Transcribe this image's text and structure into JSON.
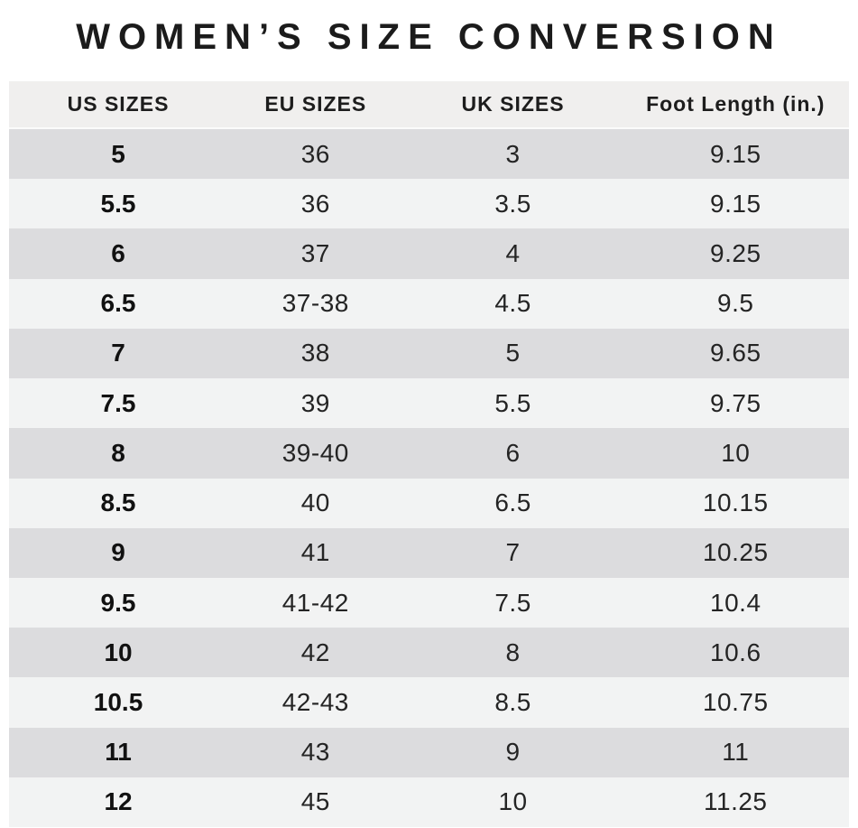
{
  "title": "WOMEN’S SIZE CONVERSION",
  "table": {
    "columns": [
      "US SIZES",
      "EU SIZES",
      "UK SIZES",
      "Foot Length (in.)"
    ],
    "rows": [
      [
        "5",
        "36",
        "3",
        "9.15"
      ],
      [
        "5.5",
        "36",
        "3.5",
        "9.15"
      ],
      [
        "6",
        "37",
        "4",
        "9.25"
      ],
      [
        "6.5",
        "37-38",
        "4.5",
        "9.5"
      ],
      [
        "7",
        "38",
        "5",
        "9.65"
      ],
      [
        "7.5",
        "39",
        "5.5",
        "9.75"
      ],
      [
        "8",
        "39-40",
        "6",
        "10"
      ],
      [
        "8.5",
        "40",
        "6.5",
        "10.15"
      ],
      [
        "9",
        "41",
        "7",
        "10.25"
      ],
      [
        "9.5",
        "41-42",
        "7.5",
        "10.4"
      ],
      [
        "10",
        "42",
        "8",
        "10.6"
      ],
      [
        "10.5",
        "42-43",
        "8.5",
        "10.75"
      ],
      [
        "11",
        "43",
        "9",
        "11"
      ],
      [
        "12",
        "45",
        "10",
        "11.25"
      ]
    ],
    "colors": {
      "header_bg": "#f0efee",
      "row_dark": "#dcdcde",
      "row_light": "#f2f3f3",
      "text": "#242424"
    }
  }
}
